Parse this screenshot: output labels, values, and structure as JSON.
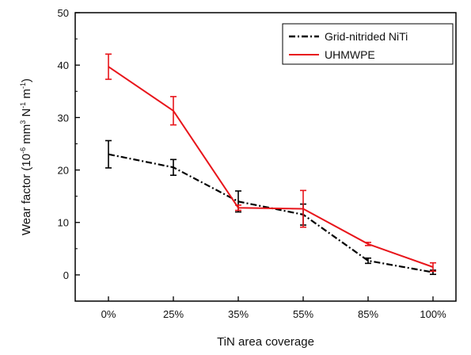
{
  "chart_data": {
    "type": "line",
    "categories": [
      "0%",
      "25%",
      "35%",
      "55%",
      "85%",
      "100%"
    ],
    "xlabel": "TiN area coverage",
    "ylabel": {
      "prefix": "Wear factor (10",
      "exp1": "-6",
      "mid1": " mm",
      "exp2": "3",
      "mid2": " N",
      "exp3": "-1",
      "mid3": " m",
      "exp4": "-1",
      "suffix": ")"
    },
    "ylim": [
      -5,
      50
    ],
    "yticks": [
      0,
      10,
      20,
      30,
      40,
      50
    ],
    "grid": false,
    "legend_position": "top-right",
    "series": [
      {
        "name": "Grid-nitrided NiTi",
        "color": "#000000",
        "line_style": "dash-dot",
        "values": [
          23.0,
          20.5,
          14.0,
          11.5,
          2.7,
          0.5
        ],
        "errors": [
          2.6,
          1.5,
          2.0,
          2.0,
          0.5,
          0.4
        ]
      },
      {
        "name": "UHMWPE",
        "color": "#e8151b",
        "line_style": "solid",
        "values": [
          39.7,
          31.3,
          12.8,
          12.6,
          5.9,
          1.5
        ],
        "errors": [
          2.4,
          2.7,
          0.5,
          3.5,
          0.3,
          0.8
        ]
      }
    ]
  }
}
